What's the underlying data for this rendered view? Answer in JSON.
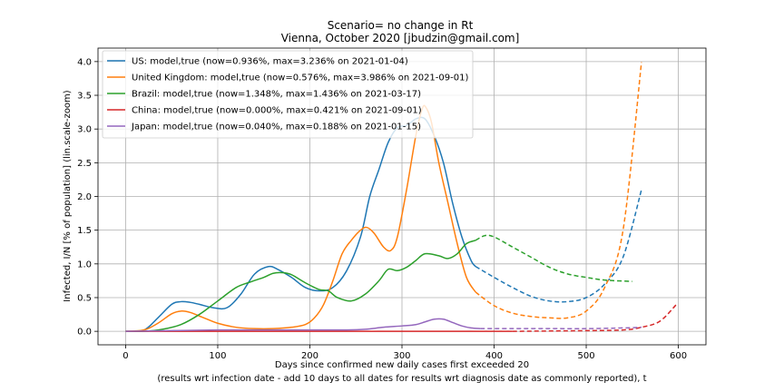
{
  "chart_data": {
    "type": "line",
    "title": "Scenario= no change in Rt",
    "subtitle": "Vienna, October 2020 [jbudzin@gmail.com]",
    "xlabel": "Days since confirmed new daily cases first exceeded 20",
    "xlabel2": "(results wrt infection date - add 10 days to all dates for results wrt diagnosis date as commonly reported), t",
    "ylabel": "Infected, I/N [% of population] (lin.scale-zoom)",
    "xlim": [
      -30,
      630
    ],
    "ylim": [
      -0.2,
      4.2
    ],
    "xticks": [
      0,
      100,
      200,
      300,
      400,
      500,
      600
    ],
    "yticks": [
      0.0,
      0.5,
      1.0,
      1.5,
      2.0,
      2.5,
      3.0,
      3.5,
      4.0
    ],
    "ytick_labels": [
      "0.0",
      "0.5",
      "1.0",
      "1.5",
      "2.0",
      "2.5",
      "3.0",
      "3.5",
      "4.0"
    ],
    "grid": true,
    "legend_position": "top-left",
    "series": [
      {
        "name": "US: model,true (now=0.936%, max=3.236% on 2021-01-04)",
        "color": "#1f77b4",
        "solid": [
          [
            0,
            0
          ],
          [
            20,
            0.02
          ],
          [
            35,
            0.2
          ],
          [
            50,
            0.4
          ],
          [
            60,
            0.44
          ],
          [
            70,
            0.43
          ],
          [
            80,
            0.4
          ],
          [
            95,
            0.35
          ],
          [
            110,
            0.35
          ],
          [
            125,
            0.55
          ],
          [
            140,
            0.85
          ],
          [
            155,
            0.96
          ],
          [
            165,
            0.92
          ],
          [
            180,
            0.8
          ],
          [
            195,
            0.65
          ],
          [
            210,
            0.6
          ],
          [
            225,
            0.65
          ],
          [
            240,
            0.9
          ],
          [
            255,
            1.4
          ],
          [
            265,
            2.0
          ],
          [
            275,
            2.4
          ],
          [
            285,
            2.8
          ],
          [
            295,
            3.02
          ],
          [
            305,
            3.05
          ],
          [
            315,
            3.15
          ],
          [
            325,
            3.15
          ],
          [
            335,
            2.9
          ],
          [
            345,
            2.5
          ],
          [
            355,
            1.9
          ],
          [
            365,
            1.4
          ],
          [
            375,
            1.05
          ],
          [
            380,
            0.96
          ]
        ],
        "dashed": [
          [
            380,
            0.96
          ],
          [
            400,
            0.8
          ],
          [
            420,
            0.65
          ],
          [
            440,
            0.52
          ],
          [
            460,
            0.45
          ],
          [
            480,
            0.44
          ],
          [
            500,
            0.5
          ],
          [
            520,
            0.7
          ],
          [
            540,
            1.1
          ],
          [
            560,
            2.1
          ]
        ]
      },
      {
        "name": "United Kingdom: model,true (now=0.576%, max=3.986% on 2021-09-01)",
        "color": "#ff7f0e",
        "solid": [
          [
            0,
            0
          ],
          [
            20,
            0.02
          ],
          [
            35,
            0.12
          ],
          [
            50,
            0.26
          ],
          [
            60,
            0.3
          ],
          [
            70,
            0.28
          ],
          [
            85,
            0.2
          ],
          [
            100,
            0.12
          ],
          [
            120,
            0.06
          ],
          [
            140,
            0.04
          ],
          [
            160,
            0.04
          ],
          [
            180,
            0.06
          ],
          [
            195,
            0.1
          ],
          [
            205,
            0.2
          ],
          [
            215,
            0.4
          ],
          [
            225,
            0.75
          ],
          [
            235,
            1.15
          ],
          [
            245,
            1.35
          ],
          [
            255,
            1.5
          ],
          [
            262,
            1.54
          ],
          [
            270,
            1.45
          ],
          [
            280,
            1.25
          ],
          [
            288,
            1.2
          ],
          [
            295,
            1.4
          ],
          [
            305,
            2.1
          ],
          [
            315,
            2.9
          ],
          [
            322,
            3.3
          ],
          [
            326,
            3.32
          ],
          [
            332,
            3.1
          ],
          [
            340,
            2.5
          ],
          [
            350,
            1.9
          ],
          [
            360,
            1.3
          ],
          [
            370,
            0.8
          ],
          [
            380,
            0.58
          ]
        ],
        "dashed": [
          [
            380,
            0.58
          ],
          [
            400,
            0.38
          ],
          [
            420,
            0.27
          ],
          [
            440,
            0.22
          ],
          [
            460,
            0.2
          ],
          [
            480,
            0.2
          ],
          [
            500,
            0.3
          ],
          [
            520,
            0.65
          ],
          [
            540,
            1.5
          ],
          [
            560,
            3.99
          ]
        ]
      },
      {
        "name": "Brazil: model,true (now=1.348%, max=1.436% on 2021-03-17)",
        "color": "#2ca02c",
        "solid": [
          [
            0,
            0
          ],
          [
            20,
            0.0
          ],
          [
            40,
            0.03
          ],
          [
            60,
            0.1
          ],
          [
            80,
            0.25
          ],
          [
            100,
            0.45
          ],
          [
            120,
            0.65
          ],
          [
            135,
            0.73
          ],
          [
            150,
            0.8
          ],
          [
            160,
            0.86
          ],
          [
            170,
            0.87
          ],
          [
            180,
            0.84
          ],
          [
            195,
            0.72
          ],
          [
            210,
            0.62
          ],
          [
            220,
            0.6
          ],
          [
            230,
            0.5
          ],
          [
            245,
            0.45
          ],
          [
            260,
            0.55
          ],
          [
            275,
            0.75
          ],
          [
            285,
            0.92
          ],
          [
            295,
            0.9
          ],
          [
            305,
            0.95
          ],
          [
            315,
            1.05
          ],
          [
            325,
            1.15
          ],
          [
            340,
            1.12
          ],
          [
            350,
            1.08
          ],
          [
            360,
            1.15
          ],
          [
            370,
            1.3
          ],
          [
            380,
            1.35
          ]
        ],
        "dashed": [
          [
            380,
            1.35
          ],
          [
            390,
            1.42
          ],
          [
            400,
            1.4
          ],
          [
            420,
            1.25
          ],
          [
            440,
            1.1
          ],
          [
            460,
            0.95
          ],
          [
            480,
            0.85
          ],
          [
            500,
            0.8
          ],
          [
            520,
            0.76
          ],
          [
            550,
            0.74
          ]
        ]
      },
      {
        "name": "China: model,true (now=0.000%, max=0.421% on 2021-09-01)",
        "color": "#d62728",
        "solid": [
          [
            0,
            0
          ],
          [
            100,
            0
          ],
          [
            200,
            0
          ],
          [
            300,
            0
          ],
          [
            380,
            0
          ],
          [
            420,
            0
          ]
        ],
        "dashed": [
          [
            420,
            0
          ],
          [
            500,
            0.01
          ],
          [
            540,
            0.02
          ],
          [
            560,
            0.06
          ],
          [
            580,
            0.15
          ],
          [
            598,
            0.4
          ]
        ]
      },
      {
        "name": "Japan: model,true (now=0.040%, max=0.188% on 2021-01-15)",
        "color": "#9467bd",
        "solid": [
          [
            0,
            0
          ],
          [
            50,
            0.01
          ],
          [
            100,
            0.02
          ],
          [
            150,
            0.02
          ],
          [
            200,
            0.02
          ],
          [
            240,
            0.02
          ],
          [
            260,
            0.03
          ],
          [
            280,
            0.06
          ],
          [
            300,
            0.08
          ],
          [
            315,
            0.1
          ],
          [
            325,
            0.14
          ],
          [
            335,
            0.18
          ],
          [
            345,
            0.18
          ],
          [
            355,
            0.13
          ],
          [
            365,
            0.08
          ],
          [
            375,
            0.05
          ],
          [
            385,
            0.04
          ]
        ],
        "dashed": [
          [
            385,
            0.04
          ],
          [
            420,
            0.04
          ],
          [
            460,
            0.04
          ],
          [
            500,
            0.04
          ],
          [
            540,
            0.05
          ],
          [
            560,
            0.06
          ]
        ]
      }
    ]
  }
}
